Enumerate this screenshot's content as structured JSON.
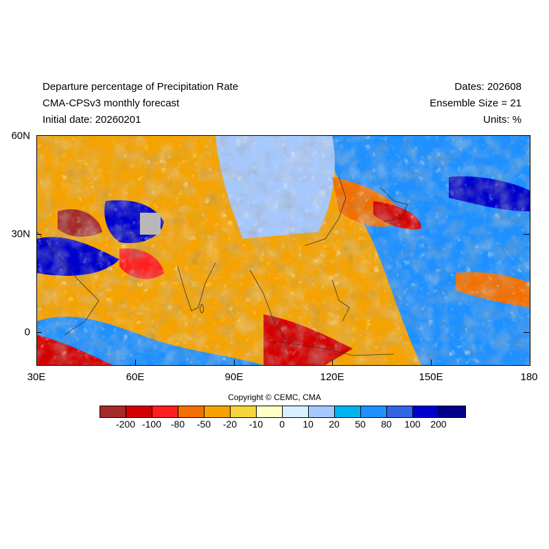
{
  "header": {
    "title": "Departure percentage of Precipitation Rate",
    "model": "CMA-CPSv3 monthly forecast",
    "initial_date": "Initial date: 20260201",
    "dates": "Dates: 202608",
    "ensemble": "Ensemble Size = 21",
    "units": "Units: %"
  },
  "axes": {
    "y_ticks": [
      "60N",
      "30N",
      "0"
    ],
    "x_ticks": [
      "30E",
      "60E",
      "90E",
      "120E",
      "150E",
      "180"
    ]
  },
  "copyright": "Copyright © CEMC, CMA",
  "colorbar": {
    "labels": [
      "-200",
      "-100",
      "-80",
      "-50",
      "-20",
      "-10",
      "0",
      "10",
      "20",
      "50",
      "80",
      "100",
      "200"
    ],
    "colors": [
      "#a52a2a",
      "#d40000",
      "#ff1f1f",
      "#f26f00",
      "#f5a300",
      "#f7d43a",
      "#ffffc8",
      "#d7f0ff",
      "#a5c8ff",
      "#00b4f0",
      "#1e90ff",
      "#3264e6",
      "#0000cd",
      "#00008b"
    ]
  }
}
